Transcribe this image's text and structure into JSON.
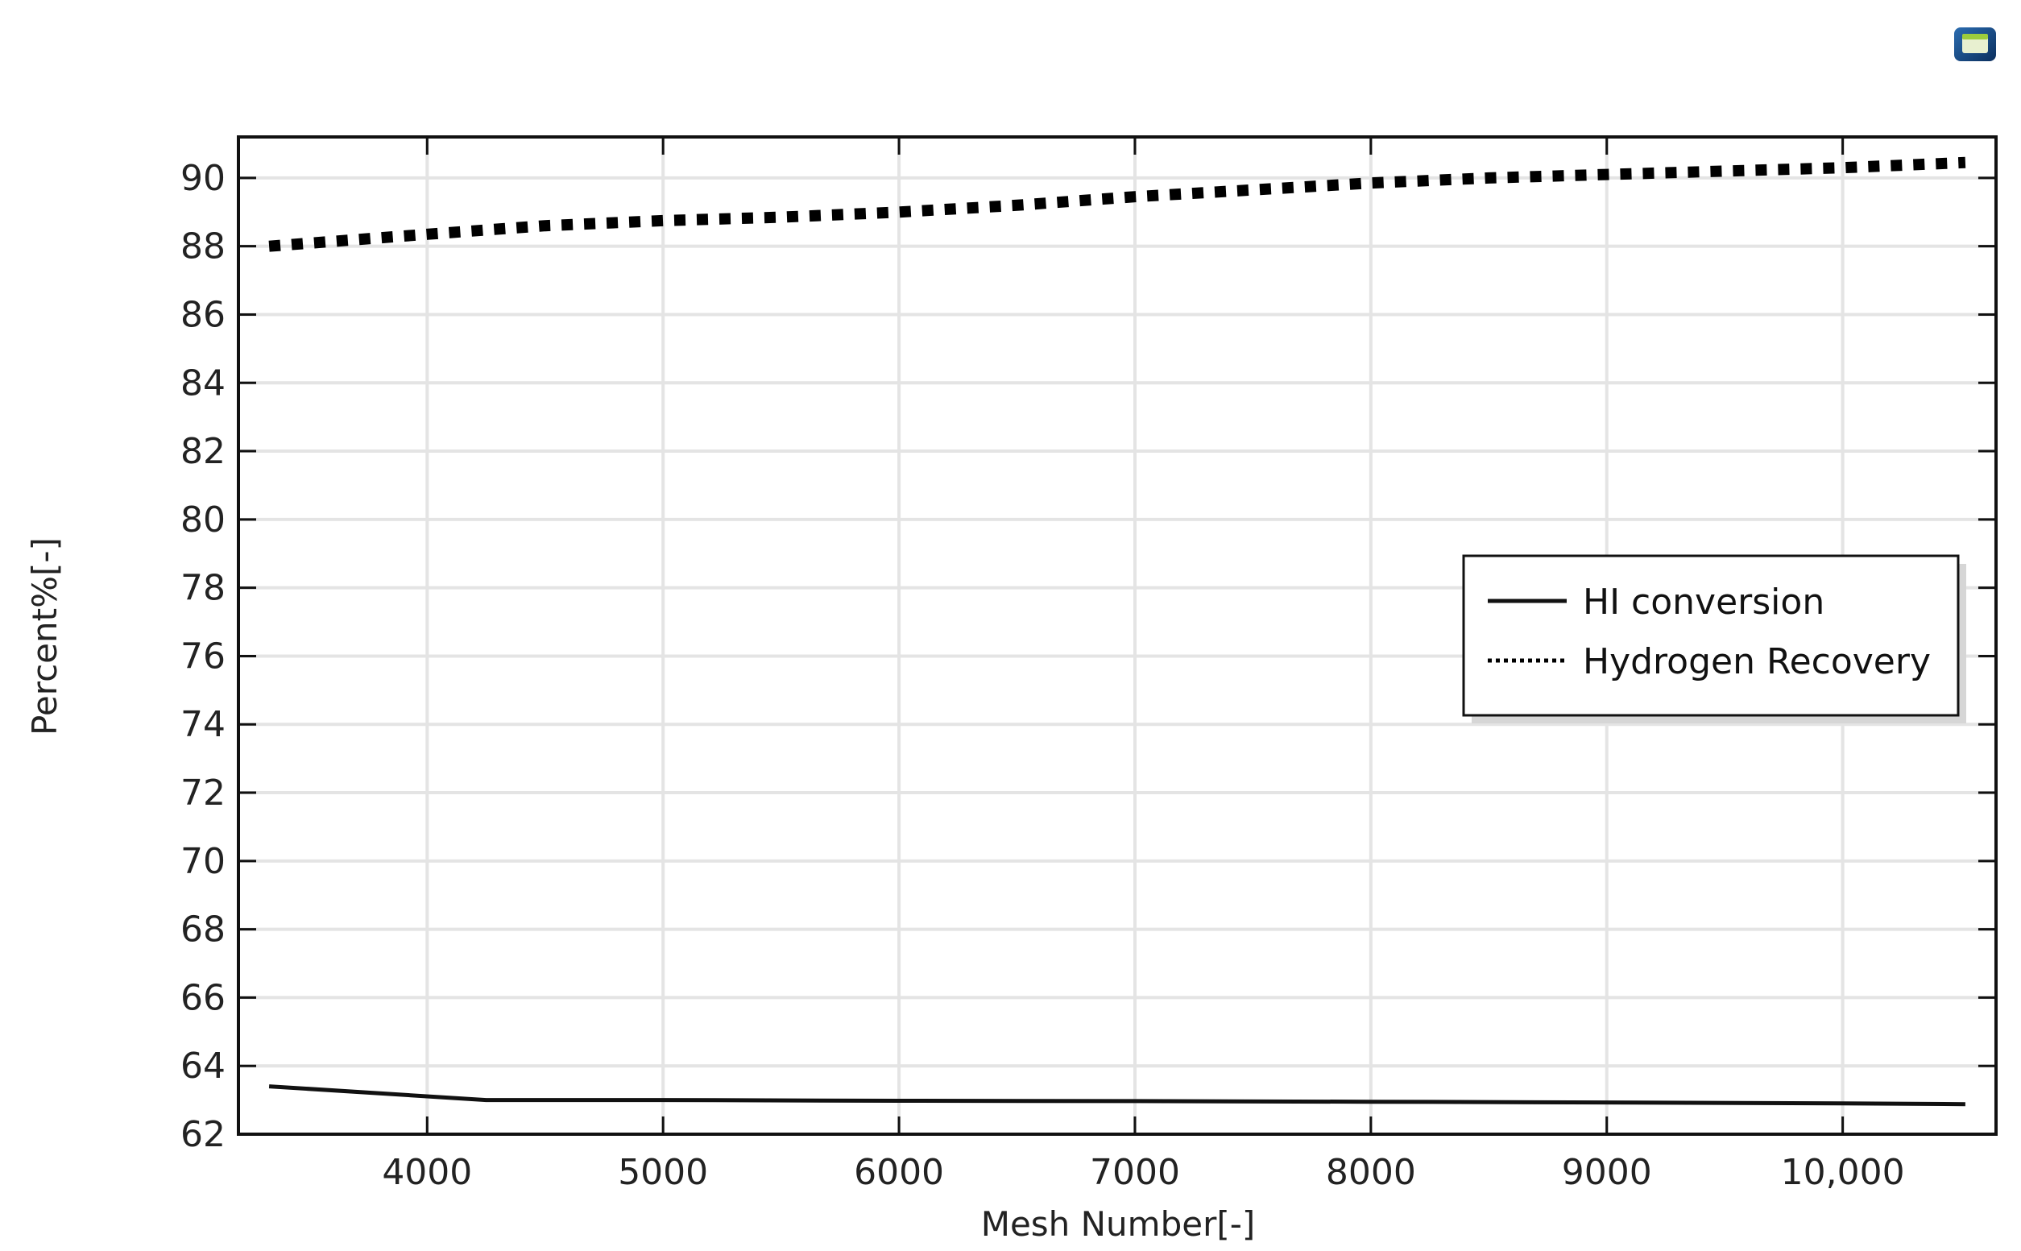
{
  "chart_data": {
    "type": "line",
    "xlabel": "Mesh Number[-]",
    "ylabel": "Percent%[-]",
    "xlim": [
      3200,
      10650
    ],
    "ylim": [
      62,
      91.2
    ],
    "x_ticks": [
      {
        "value": 4000,
        "label": "4000"
      },
      {
        "value": 5000,
        "label": "5000"
      },
      {
        "value": 6000,
        "label": "6000"
      },
      {
        "value": 7000,
        "label": "7000"
      },
      {
        "value": 8000,
        "label": "8000"
      },
      {
        "value": 9000,
        "label": "9000"
      },
      {
        "value": 10000,
        "label": "10,000"
      }
    ],
    "y_ticks": [
      62,
      64,
      66,
      68,
      70,
      72,
      74,
      76,
      78,
      80,
      82,
      84,
      86,
      88,
      90
    ],
    "grid": true,
    "legend_position": "right-middle",
    "series": [
      {
        "name": "HI conversion",
        "style": "solid",
        "color": "#111111",
        "x": [
          3330,
          4250,
          5000,
          6000,
          7000,
          8000,
          9000,
          10000,
          10520
        ],
        "y": [
          63.4,
          63.0,
          63.0,
          62.98,
          62.97,
          62.95,
          62.93,
          62.9,
          62.88
        ]
      },
      {
        "name": "Hydrogen Recovery",
        "style": "dotted",
        "color": "#000000",
        "x": [
          3330,
          4000,
          4500,
          5000,
          5500,
          6000,
          6500,
          7000,
          7500,
          8000,
          8500,
          9000,
          9500,
          10000,
          10520
        ],
        "y": [
          88.0,
          88.35,
          88.6,
          88.75,
          88.85,
          89.0,
          89.2,
          89.45,
          89.65,
          89.85,
          90.0,
          90.1,
          90.2,
          90.3,
          90.45
        ]
      }
    ]
  },
  "icons": {
    "toolbar_icon": "app-window-icon"
  }
}
